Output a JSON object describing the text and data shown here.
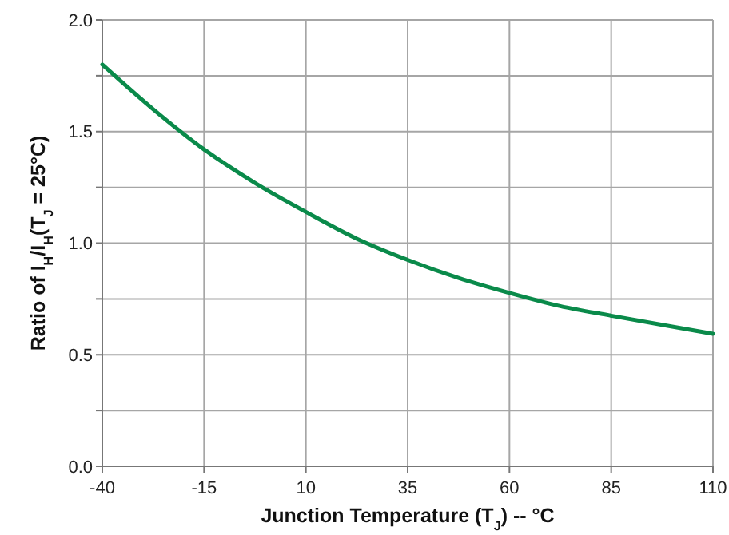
{
  "chart_data": {
    "type": "line",
    "xlabel": "Junction Temperature (T$_{J}$) -- °C",
    "ylabel": "Ratio of I$_{H}$/I$_{H}$(T$_{J}$ = 25°C)",
    "x": [
      -40,
      -27.5,
      -15,
      -2.5,
      10,
      22.5,
      35,
      47.5,
      60,
      72.5,
      85,
      97.5,
      110
    ],
    "series": [
      {
        "color": "#0a8a4a",
        "values": [
          1.8,
          1.6,
          1.42,
          1.27,
          1.14,
          1.02,
          0.925,
          0.844,
          0.777,
          0.718,
          0.675,
          0.634,
          0.594
        ]
      }
    ],
    "xlim": [
      -40,
      110
    ],
    "xticks": [
      -40,
      -15,
      10,
      35,
      60,
      85,
      110
    ],
    "ylim": [
      0,
      2
    ],
    "yticks": [
      {
        "value": 0,
        "label": "0.0"
      },
      {
        "value": 0.25,
        "label": null
      },
      {
        "value": 0.5,
        "label": "0.5"
      },
      {
        "value": 0.75,
        "label": null
      },
      {
        "value": 1,
        "label": "1.0"
      },
      {
        "value": 1.25,
        "label": null
      },
      {
        "value": 1.5,
        "label": "1.5"
      },
      {
        "value": 1.75,
        "label": null
      },
      {
        "value": 2,
        "label": "2.0"
      }
    ],
    "grid": true,
    "marker": "none",
    "line_style": "solid"
  }
}
